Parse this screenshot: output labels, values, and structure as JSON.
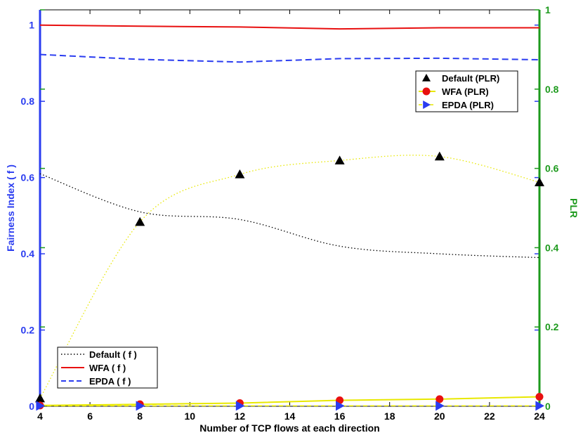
{
  "chart_data": {
    "type": "line",
    "xlabel": "Number of TCP flows at each direction",
    "ylabel_left": "Fairness Index ( f )",
    "ylabel_right": "PLR",
    "x_ticks": [
      "4",
      "6",
      "8",
      "10",
      "12",
      "14",
      "16",
      "18",
      "20",
      "22",
      "24"
    ],
    "xlim": [
      4,
      24
    ],
    "ylim_left": [
      0,
      1.04
    ],
    "ylim_right": [
      0,
      1
    ],
    "y_ticks_left": [
      "0",
      "0.2",
      "0.4",
      "0.6",
      "0.8",
      "1"
    ],
    "y_ticks_right": [
      "0",
      "0.2",
      "0.4",
      "0.6",
      "0.8",
      "1"
    ],
    "colors": {
      "left_axis": "#2a3cf0",
      "right_axis": "#1d9a1d",
      "yellow": "#e8e800",
      "red": "#e81010",
      "blue": "#2a3cf0",
      "black": "#000000"
    },
    "series_left": [
      {
        "name": "Default ( f )",
        "x": [
          4,
          8,
          12,
          16,
          20,
          24
        ],
        "values": [
          0.61,
          0.51,
          0.49,
          0.42,
          0.4,
          0.39
        ]
      },
      {
        "name": "WFA ( f )",
        "x": [
          4,
          8,
          12,
          16,
          20,
          24
        ],
        "values": [
          1.0,
          0.997,
          0.995,
          0.99,
          0.993,
          0.993
        ]
      },
      {
        "name": "EPDA ( f )",
        "x": [
          4,
          8,
          12,
          16,
          20,
          24
        ],
        "values": [
          0.923,
          0.91,
          0.903,
          0.912,
          0.913,
          0.909
        ]
      }
    ],
    "series_right": [
      {
        "name": "Default (PLR)",
        "x": [
          4,
          8,
          12,
          16,
          20,
          24
        ],
        "values": [
          0.02,
          0.465,
          0.585,
          0.62,
          0.63,
          0.565
        ],
        "marker": "triangle-up"
      },
      {
        "name": "WFA (PLR)",
        "x": [
          4,
          8,
          12,
          16,
          20,
          24
        ],
        "values": [
          0.002,
          0.005,
          0.008,
          0.015,
          0.018,
          0.024
        ],
        "marker": "circle"
      },
      {
        "name": "EPDA (PLR)",
        "x": [
          4,
          8,
          12,
          16,
          20,
          24
        ],
        "values": [
          0.001,
          0.001,
          0.001,
          0.001,
          0.001,
          0.001
        ],
        "marker": "triangle-right"
      }
    ],
    "legend_left_position": "bottom-left",
    "legend_right_position": "top-right",
    "grid": false
  }
}
